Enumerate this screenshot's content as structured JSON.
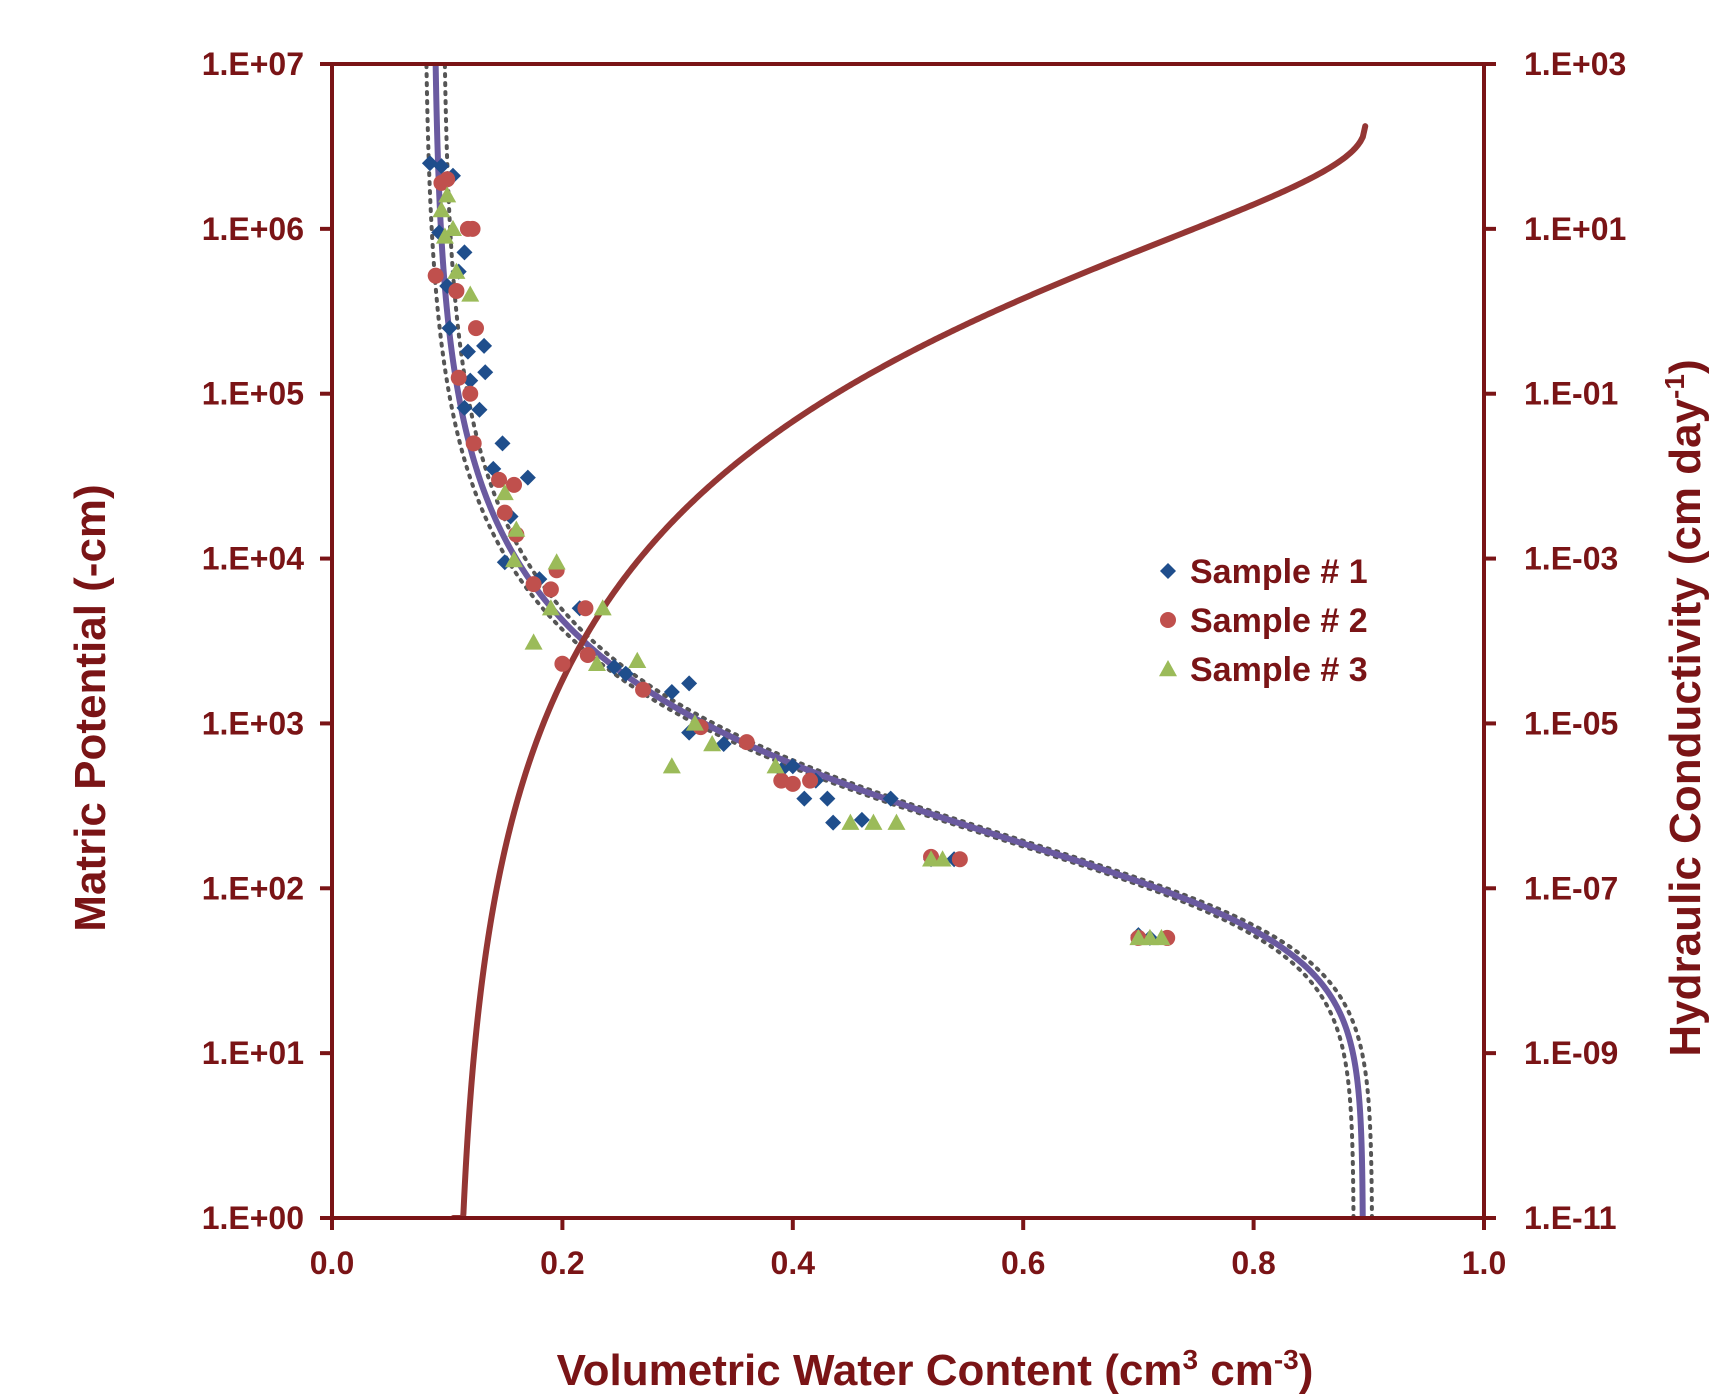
{
  "chart_data": {
    "type": "scatter",
    "xlabel": "Volumetric Water Content (cm",
    "xlabel_sup1": "3",
    "xlabel_mid": " cm",
    "xlabel_sup2": "-3",
    "xlabel_end": ")",
    "ylabel": "Matric Potential (-cm)",
    "y2label": "Hydraulic Conductivity (cm day",
    "y2label_sup": "-1",
    "y2label_end": ")",
    "xlim": [
      0.0,
      1.0
    ],
    "ylim": [
      1,
      10000000
    ],
    "y2lim": [
      1e-11,
      1000
    ],
    "yscale": "log",
    "y2scale": "log",
    "grid": false,
    "legend_position": "center-right",
    "x_tick_labels": [
      "0.0",
      "0.2",
      "0.4",
      "0.6",
      "0.8",
      "1.0"
    ],
    "x_ticks": [
      0.0,
      0.2,
      0.4,
      0.6,
      0.8,
      1.0
    ],
    "y_tick_labels": [
      "1.E+00",
      "1.E+01",
      "1.E+02",
      "1.E+03",
      "1.E+04",
      "1.E+05",
      "1.E+06",
      "1.E+07"
    ],
    "y_ticks": [
      1,
      10,
      100,
      1000,
      10000,
      100000,
      1000000,
      10000000
    ],
    "y2_tick_labels": [
      "1.E-11",
      "1.E-09",
      "1.E-07",
      "1.E-05",
      "1.E-03",
      "1.E-01",
      "1.E+01",
      "1.E+03"
    ],
    "y2_ticks": [
      1e-11,
      1e-09,
      1e-07,
      1e-05,
      0.001,
      0.1,
      10,
      1000
    ],
    "colors": {
      "axis": "#7a1416",
      "sample1": "#1f4e8c",
      "sample2": "#c0504d",
      "sample3": "#9bbb59",
      "fit": "#6a5aa0",
      "dotted": "#555555",
      "conductivity": "#943634"
    },
    "series": [
      {
        "name": "Sample # 1",
        "marker": "diamond",
        "points": [
          [
            0.085,
            2500000
          ],
          [
            0.095,
            2400000
          ],
          [
            0.105,
            2100000
          ],
          [
            0.093,
            950000
          ],
          [
            0.115,
            720000
          ],
          [
            0.1,
            450000
          ],
          [
            0.11,
            550000
          ],
          [
            0.102,
            250000
          ],
          [
            0.118,
            180000
          ],
          [
            0.132,
            195000
          ],
          [
            0.12,
            120000
          ],
          [
            0.133,
            135000
          ],
          [
            0.115,
            82000
          ],
          [
            0.128,
            80000
          ],
          [
            0.14,
            35000
          ],
          [
            0.148,
            50000
          ],
          [
            0.17,
            31000
          ],
          [
            0.15,
            9500
          ],
          [
            0.155,
            18000
          ],
          [
            0.18,
            7500
          ],
          [
            0.215,
            5000
          ],
          [
            0.245,
            2200
          ],
          [
            0.255,
            2000
          ],
          [
            0.295,
            1550
          ],
          [
            0.31,
            1750
          ],
          [
            0.31,
            880
          ],
          [
            0.34,
            750
          ],
          [
            0.39,
            520
          ],
          [
            0.4,
            550
          ],
          [
            0.41,
            350
          ],
          [
            0.42,
            450
          ],
          [
            0.43,
            350
          ],
          [
            0.435,
            250
          ],
          [
            0.46,
            260
          ],
          [
            0.485,
            350
          ],
          [
            0.52,
            150
          ],
          [
            0.54,
            150
          ],
          [
            0.7,
            52
          ],
          [
            0.71,
            50
          ]
        ]
      },
      {
        "name": "Sample # 2",
        "marker": "circle",
        "points": [
          [
            0.09,
            520000
          ],
          [
            0.095,
            1900000
          ],
          [
            0.1,
            2000000
          ],
          [
            0.118,
            1000000
          ],
          [
            0.122,
            1000000
          ],
          [
            0.108,
            420000
          ],
          [
            0.125,
            250000
          ],
          [
            0.11,
            125000
          ],
          [
            0.12,
            100000
          ],
          [
            0.123,
            50000
          ],
          [
            0.145,
            30000
          ],
          [
            0.158,
            28000
          ],
          [
            0.15,
            19000
          ],
          [
            0.16,
            14000
          ],
          [
            0.175,
            7000
          ],
          [
            0.195,
            8500
          ],
          [
            0.19,
            6500
          ],
          [
            0.22,
            5000
          ],
          [
            0.2,
            2300
          ],
          [
            0.222,
            2600
          ],
          [
            0.27,
            1600
          ],
          [
            0.32,
            950
          ],
          [
            0.36,
            770
          ],
          [
            0.39,
            450
          ],
          [
            0.4,
            430
          ],
          [
            0.415,
            450
          ],
          [
            0.52,
            155
          ],
          [
            0.545,
            150
          ],
          [
            0.7,
            50
          ],
          [
            0.725,
            50
          ]
        ]
      },
      {
        "name": "Sample # 3",
        "marker": "triangle",
        "points": [
          [
            0.095,
            1300000
          ],
          [
            0.1,
            1600000
          ],
          [
            0.105,
            1000000
          ],
          [
            0.098,
            900000
          ],
          [
            0.108,
            550000
          ],
          [
            0.12,
            400000
          ],
          [
            0.15,
            25000
          ],
          [
            0.16,
            15000
          ],
          [
            0.158,
            9800
          ],
          [
            0.175,
            3100
          ],
          [
            0.19,
            5000
          ],
          [
            0.195,
            9500
          ],
          [
            0.235,
            5000
          ],
          [
            0.23,
            2300
          ],
          [
            0.265,
            2400
          ],
          [
            0.295,
            550
          ],
          [
            0.315,
            1000
          ],
          [
            0.33,
            750
          ],
          [
            0.385,
            550
          ],
          [
            0.45,
            250
          ],
          [
            0.47,
            250
          ],
          [
            0.49,
            250
          ],
          [
            0.52,
            150
          ],
          [
            0.53,
            150
          ],
          [
            0.7,
            50
          ],
          [
            0.71,
            50
          ],
          [
            0.72,
            50
          ]
        ]
      }
    ],
    "fit_curve": {
      "model": "van Genuchten",
      "theta_r": 0.088,
      "theta_s": 0.895,
      "alpha": 0.0105,
      "n": 1.52,
      "dotted_offsets": [
        -0.008,
        0.008
      ]
    },
    "conductivity_curve": {
      "model": "Mualem-van Genuchten",
      "theta_r": 0.105,
      "theta_s": 0.897,
      "Ks": 200,
      "L": 0.5,
      "n": 1.52
    }
  }
}
